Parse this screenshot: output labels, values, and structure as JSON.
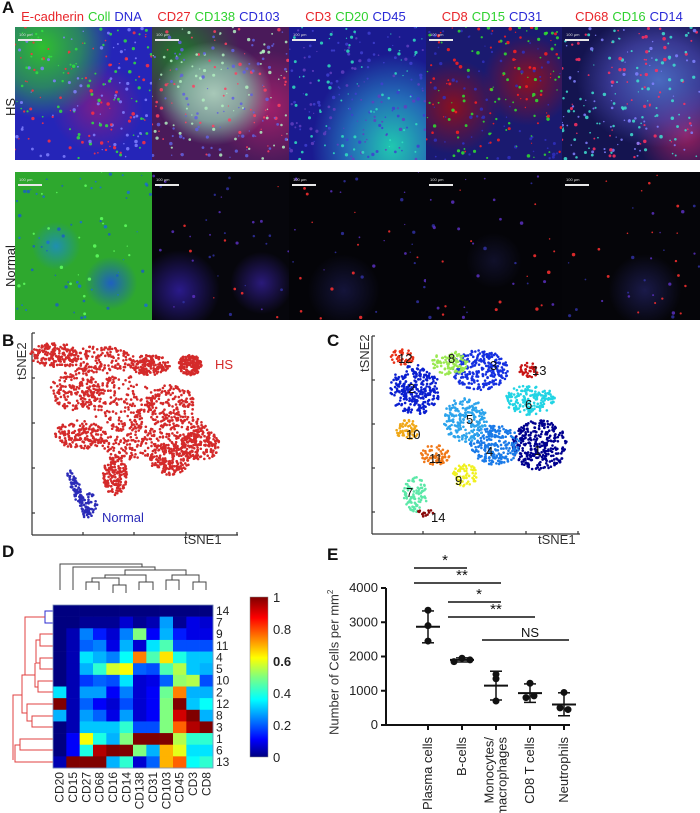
{
  "panels": {
    "A": {
      "letter": "A",
      "row_labels": [
        "HS",
        "Normal"
      ],
      "scale_bar": "100 µm",
      "stains": [
        {
          "red": "E-cadherin",
          "green": "Coll",
          "blue": "DNA"
        },
        {
          "red": "CD27",
          "green": "CD138",
          "blue": "CD103"
        },
        {
          "red": "CD3",
          "green": "CD20",
          "blue": "CD45"
        },
        {
          "red": "CD8",
          "green": "CD15",
          "blue": "CD31"
        },
        {
          "red": "CD68",
          "green": "CD16",
          "blue": "CD14"
        }
      ],
      "colors": {
        "red": "#e8262b",
        "green": "#2fd12f",
        "blue": "#2a2ad6"
      }
    },
    "B": {
      "letter": "B",
      "xlabel": "tSNE1",
      "ylabel": "tSNE2",
      "groups": [
        {
          "name": "HS",
          "color": "#d42a2a"
        },
        {
          "name": "Normal",
          "color": "#2b2bb8"
        }
      ]
    },
    "C": {
      "letter": "C",
      "xlabel": "tSNE1",
      "ylabel": "tSNE2",
      "clusters": [
        "1",
        "2",
        "3",
        "4",
        "5",
        "6",
        "7",
        "8",
        "9",
        "10",
        "11",
        "12",
        "13",
        "14"
      ]
    },
    "D": {
      "letter": "D",
      "colorbar_ticks": [
        "1",
        "0.8",
        "0.6",
        "0.4",
        "0.2",
        "0"
      ]
    },
    "E": {
      "letter": "E",
      "ylabel": "Number of Cells per mm",
      "ylabel_sup": "2",
      "yticks": [
        "4000",
        "3000",
        "2000",
        "1000",
        "0"
      ],
      "categories": [
        "Plasma cells",
        "B-cells",
        "Monocytes/\nmacrophages",
        "CD8 T cells",
        "Neutrophils"
      ],
      "significance": [
        {
          "from": 0,
          "to": 1,
          "label": "*"
        },
        {
          "from": 0,
          "to": 2,
          "label": "**"
        },
        {
          "from": 1,
          "to": 2,
          "label": "*"
        },
        {
          "from": 1,
          "to": 3,
          "label": "**"
        },
        {
          "from": 2,
          "to": 4,
          "label": "NS"
        }
      ]
    }
  },
  "chart_data": [
    {
      "panel": "B",
      "type": "scatter",
      "title": "",
      "xlabel": "tSNE1",
      "ylabel": "tSNE2",
      "legend": [
        "HS",
        "Normal"
      ],
      "series": [
        {
          "name": "HS",
          "color": "#d42a2a",
          "region": "large cluster occupying upper/central area"
        },
        {
          "name": "Normal",
          "color": "#2b2bb8",
          "region": "small cluster at lower left"
        }
      ],
      "grid": false
    },
    {
      "panel": "C",
      "type": "scatter",
      "title": "",
      "xlabel": "tSNE1",
      "ylabel": "tSNE2",
      "series": [
        {
          "name": "1",
          "color": "#00008f",
          "label_pos": "lower right"
        },
        {
          "name": "2",
          "color": "#0a1fd0",
          "label_pos": "upper left"
        },
        {
          "name": "3",
          "color": "#1530e0",
          "label_pos": "upper center"
        },
        {
          "name": "4",
          "color": "#1a7ae8",
          "label_pos": "center lower"
        },
        {
          "name": "5",
          "color": "#2ca4ec",
          "label_pos": "center"
        },
        {
          "name": "6",
          "color": "#22d4e4",
          "label_pos": "right"
        },
        {
          "name": "7",
          "color": "#5ce8a8",
          "label_pos": "lower left"
        },
        {
          "name": "8",
          "color": "#9ae850",
          "label_pos": "top"
        },
        {
          "name": "9",
          "color": "#f0f020",
          "label_pos": "lower center"
        },
        {
          "name": "10",
          "color": "#f0a818",
          "label_pos": "left"
        },
        {
          "name": "11",
          "color": "#f07818",
          "label_pos": "left lower"
        },
        {
          "name": "12",
          "color": "#e83218",
          "label_pos": "top left"
        },
        {
          "name": "13",
          "color": "#c81414",
          "label_pos": "top right"
        },
        {
          "name": "14",
          "color": "#8a0a0a",
          "label_pos": "bottom"
        }
      ],
      "grid": false
    },
    {
      "panel": "D",
      "type": "heatmap",
      "title": "",
      "columns": [
        "CD20",
        "CD15",
        "CD27",
        "CD68",
        "CD16",
        "CD14",
        "CD138",
        "CD31",
        "CD103",
        "CD45",
        "CD3",
        "CD8"
      ],
      "rows": [
        "14",
        "7",
        "9",
        "11",
        "4",
        "5",
        "10",
        "2",
        "12",
        "8",
        "3",
        "1",
        "6",
        "13"
      ],
      "values": [
        [
          0.0,
          0.0,
          0.0,
          0.0,
          0.0,
          0.0,
          0.0,
          0.0,
          0.0,
          0.0,
          0.0,
          0.0
        ],
        [
          0.0,
          0.0,
          0.02,
          0.02,
          0.02,
          0.08,
          0.02,
          0.05,
          0.28,
          0.02,
          0.1,
          0.08
        ],
        [
          0.0,
          0.05,
          0.25,
          0.15,
          0.08,
          0.25,
          0.5,
          0.12,
          0.3,
          0.15,
          0.1,
          0.1
        ],
        [
          0.0,
          0.05,
          0.22,
          0.25,
          0.1,
          0.3,
          0.08,
          0.35,
          0.45,
          0.2,
          0.2,
          0.2
        ],
        [
          0.0,
          0.05,
          0.35,
          0.3,
          0.25,
          0.38,
          0.75,
          0.45,
          0.65,
          0.4,
          0.32,
          0.32
        ],
        [
          0.0,
          0.05,
          0.3,
          0.42,
          0.58,
          0.62,
          0.22,
          0.2,
          0.45,
          0.55,
          0.32,
          0.3
        ],
        [
          0.0,
          0.05,
          0.18,
          0.22,
          0.2,
          0.35,
          0.08,
          0.1,
          0.22,
          0.52,
          0.55,
          0.2
        ],
        [
          0.35,
          0.05,
          0.28,
          0.28,
          0.12,
          0.25,
          0.08,
          0.12,
          0.48,
          0.75,
          0.3,
          0.3
        ],
        [
          1.0,
          0.05,
          0.22,
          0.12,
          0.08,
          0.2,
          0.08,
          0.12,
          0.5,
          1.0,
          0.32,
          0.38
        ],
        [
          0.3,
          0.05,
          0.28,
          0.22,
          0.1,
          0.28,
          0.08,
          0.12,
          0.5,
          0.92,
          1.0,
          0.3
        ],
        [
          0.0,
          0.05,
          0.32,
          0.32,
          0.32,
          0.42,
          0.2,
          0.2,
          0.5,
          0.78,
          0.95,
          1.0
        ],
        [
          0.0,
          0.12,
          0.62,
          0.4,
          0.3,
          0.5,
          1.0,
          1.0,
          1.0,
          0.55,
          0.42,
          0.42
        ],
        [
          0.0,
          0.12,
          0.4,
          0.95,
          1.0,
          1.0,
          0.5,
          0.3,
          0.7,
          0.6,
          0.35,
          0.35
        ],
        [
          0.05,
          1.0,
          1.0,
          1.0,
          0.3,
          0.42,
          0.08,
          0.22,
          0.7,
          0.78,
          0.38,
          0.42
        ]
      ],
      "colorbar": {
        "min": 0,
        "max": 1,
        "ticks": [
          0,
          0.2,
          0.4,
          0.6,
          0.8,
          1
        ],
        "colormap": "jet"
      },
      "row_dendrogram": true,
      "col_dendrogram": true
    },
    {
      "panel": "E",
      "type": "scatter",
      "title": "",
      "xlabel": "",
      "ylabel": "Number of Cells per mm²",
      "ylim": [
        0,
        4000
      ],
      "categories": [
        "Plasma cells",
        "B-cells",
        "Monocytes/macrophages",
        "CD8 T cells",
        "Neutrophils"
      ],
      "points": [
        [
          3350,
          2900,
          2450
        ],
        [
          1850,
          1950,
          1900
        ],
        [
          1480,
          1350,
          700
        ],
        [
          1220,
          800,
          850
        ],
        [
          950,
          500,
          450
        ]
      ],
      "mean": [
        2870,
        1900,
        1150,
        930,
        600
      ],
      "sd_upper": [
        3330,
        1960,
        1570,
        1200,
        940
      ],
      "sd_lower": [
        2400,
        1840,
        730,
        660,
        270
      ],
      "annotations": [
        {
          "between": [
            "Plasma cells",
            "B-cells"
          ],
          "label": "*"
        },
        {
          "between": [
            "Plasma cells",
            "Monocytes/macrophages"
          ],
          "label": "**"
        },
        {
          "between": [
            "B-cells",
            "Monocytes/macrophages"
          ],
          "label": "*"
        },
        {
          "between": [
            "B-cells",
            "CD8 T cells"
          ],
          "label": "**"
        },
        {
          "between": [
            "Monocytes/macrophages",
            "Neutrophils"
          ],
          "label": "NS"
        }
      ]
    }
  ]
}
